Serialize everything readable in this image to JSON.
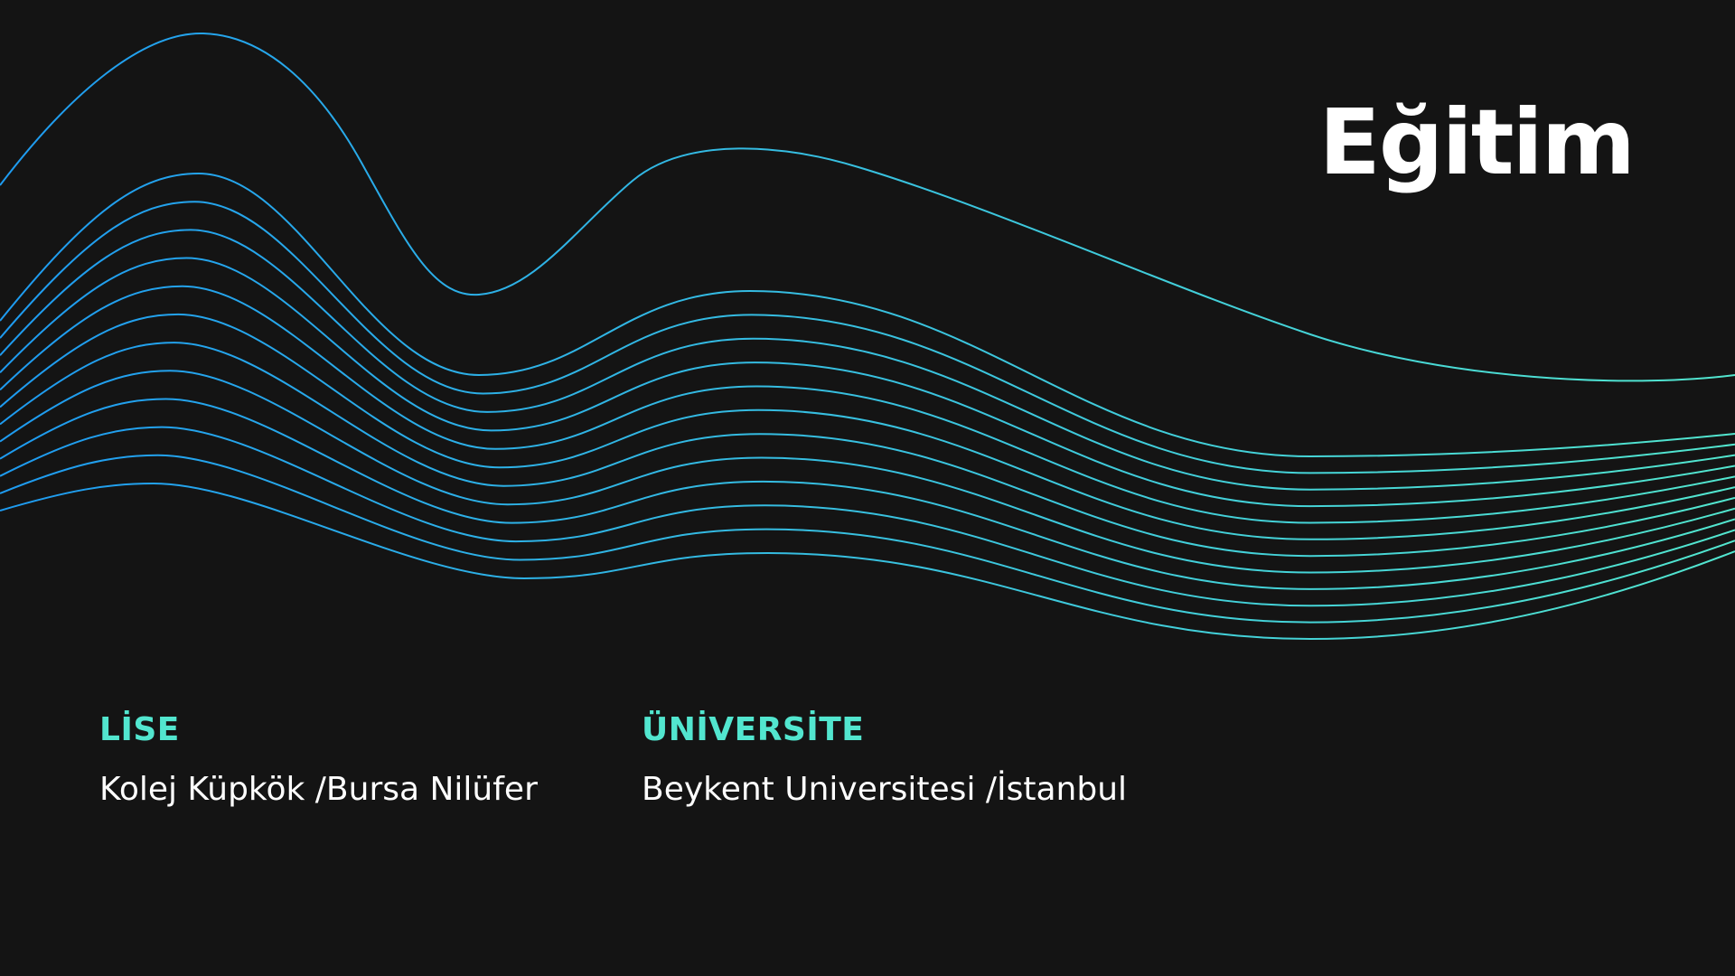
{
  "slide": {
    "title": "Eğitim",
    "background_color": "#141414"
  },
  "education": {
    "high_school": {
      "heading": "LİSE",
      "school": "Kolej Küpkök /Bursa Nilüfer"
    },
    "university": {
      "heading": "ÜNİVERSİTE",
      "school": "Beykent Universitesi /İstanbul"
    }
  },
  "decoration": {
    "waves_gradient": [
      "#1e9bf0",
      "#52e6cf"
    ],
    "accent_color": "#52e6cf"
  }
}
